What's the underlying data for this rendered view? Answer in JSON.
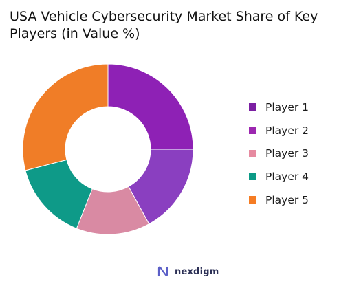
{
  "title": "USA Vehicle Cybersecurity Market Share of Key Players (in Value %)",
  "brand": "nexdigm",
  "chart_data": {
    "type": "pie",
    "donut": true,
    "title": "USA Vehicle Cybersecurity Market Share of Key Players (in Value %)",
    "legend_position": "right",
    "categories": [
      "Player 1",
      "Player 2",
      "Player 3",
      "Player 4",
      "Player 5"
    ],
    "values": [
      25,
      17,
      14,
      15,
      29
    ],
    "colors": [
      "#8e21b5",
      "#8a3fc0",
      "#d98aa3",
      "#0e9a88",
      "#f07d27"
    ],
    "legend": [
      {
        "label": "Player 1",
        "color": "#7b1fa2"
      },
      {
        "label": "Player 2",
        "color": "#9c27b0"
      },
      {
        "label": "Player 3",
        "color": "#e68aa0"
      },
      {
        "label": "Player 4",
        "color": "#0c9a86"
      },
      {
        "label": "Player 5",
        "color": "#f57c23"
      }
    ]
  }
}
